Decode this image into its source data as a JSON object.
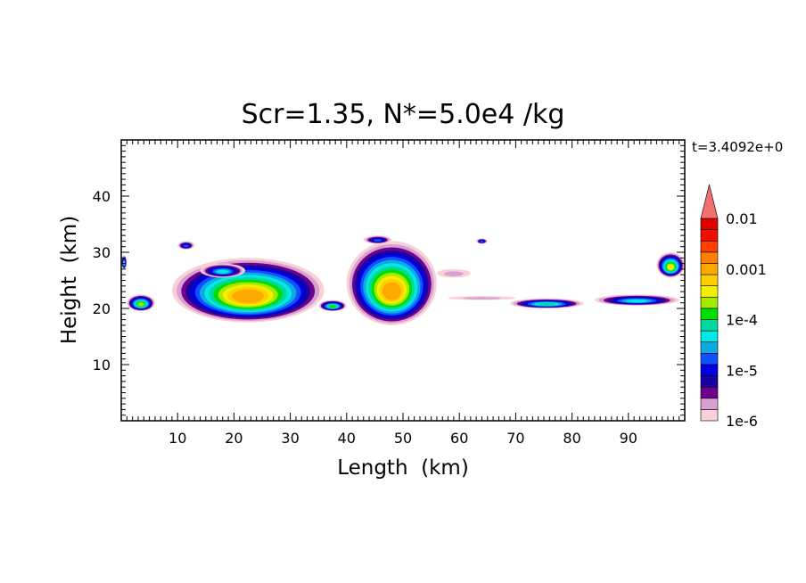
{
  "chart_data": {
    "type": "heatmap",
    "title": "Scr=1.35, N*=5.0e4 /kg",
    "time_label": "t=3.4092e+0",
    "xlabel": "Length  (km)",
    "ylabel": "Height  (km)",
    "xlim": [
      0,
      100
    ],
    "ylim": [
      0,
      50
    ],
    "x_ticks": [
      "10",
      "20",
      "30",
      "40",
      "50",
      "60",
      "70",
      "80",
      "90"
    ],
    "y_ticks": [
      "10",
      "20",
      "30",
      "40"
    ],
    "colorbar": {
      "scale": "log",
      "range": [
        1e-06,
        0.01
      ],
      "tick_labels": [
        "1e-6",
        "1e-5",
        "1e-4",
        "0.001",
        "0.01"
      ],
      "extend": "max",
      "colors": [
        "#f8d0d8",
        "#d8a0d0",
        "#700090",
        "#1800a0",
        "#0000e0",
        "#1050ff",
        "#10a8e0",
        "#00e8e8",
        "#00d8a0",
        "#00e000",
        "#a8e800",
        "#f0f000",
        "#ffd000",
        "#ffa800",
        "#ff8000",
        "#ff4000",
        "#f01000",
        "#e00000",
        "#f07070"
      ]
    },
    "features": [
      {
        "x": [
          0,
          1
        ],
        "y": [
          27,
          29.5
        ],
        "level": 7
      },
      {
        "x": [
          1,
          6
        ],
        "y": [
          19.5,
          22.5
        ],
        "level": 10
      },
      {
        "x": [
          9,
          36
        ],
        "y": [
          17.5,
          29
        ],
        "level": 13
      },
      {
        "x": [
          10,
          13
        ],
        "y": [
          30.5,
          32
        ],
        "level": 5
      },
      {
        "x": [
          14,
          22
        ],
        "y": [
          25.5,
          28
        ],
        "level": 7
      },
      {
        "x": [
          35,
          40
        ],
        "y": [
          19.5,
          21.5
        ],
        "level": 9
      },
      {
        "x": [
          40,
          56
        ],
        "y": [
          17,
          32
        ],
        "level": 13
      },
      {
        "x": [
          43,
          48
        ],
        "y": [
          31.5,
          33
        ],
        "level": 5
      },
      {
        "x": [
          56,
          62
        ],
        "y": [
          25.5,
          27
        ],
        "level": 1
      },
      {
        "x": [
          63,
          65
        ],
        "y": [
          31.5,
          32.5
        ],
        "level": 5
      },
      {
        "x": [
          58,
          70
        ],
        "y": [
          21.5,
          22.2
        ],
        "level": 1
      },
      {
        "x": [
          69,
          82
        ],
        "y": [
          20,
          21.8
        ],
        "level": 8
      },
      {
        "x": [
          84,
          99
        ],
        "y": [
          20.5,
          22.5
        ],
        "level": 7
      },
      {
        "x": [
          95,
          100
        ],
        "y": [
          25.5,
          30
        ],
        "level": 11
      }
    ]
  }
}
